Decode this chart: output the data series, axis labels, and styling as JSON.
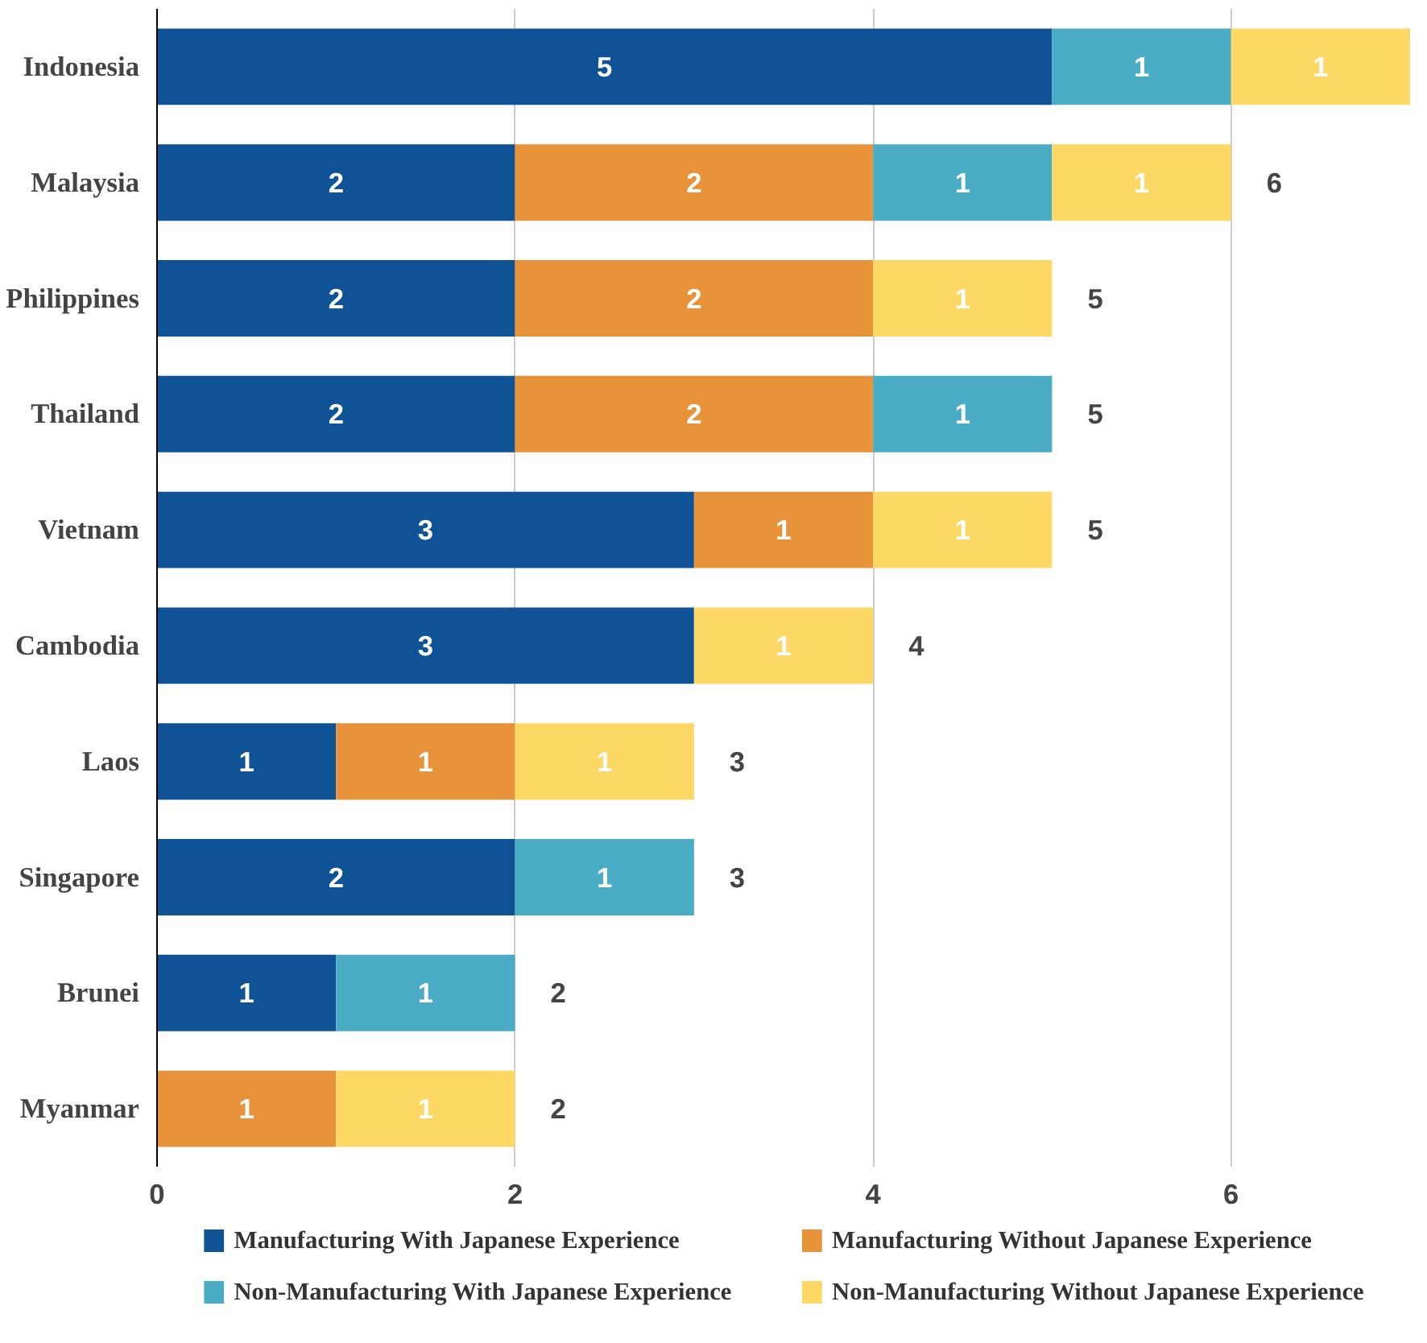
{
  "chart_data": {
    "type": "bar",
    "orientation": "horizontal",
    "stacked": true,
    "categories": [
      "Indonesia",
      "Malaysia",
      "Philippines",
      "Thailand",
      "Vietnam",
      "Cambodia",
      "Laos",
      "Singapore",
      "Brunei",
      "Myanmar"
    ],
    "series": [
      {
        "name": "Manufacturing With Japanese Experience",
        "color": "#0f5396",
        "values": [
          5,
          2,
          2,
          2,
          3,
          3,
          1,
          2,
          1,
          null
        ]
      },
      {
        "name": "Manufacturing Without Japanese Experience",
        "color": "#e8923a",
        "values": [
          null,
          2,
          2,
          2,
          1,
          null,
          1,
          null,
          null,
          1
        ]
      },
      {
        "name": "Non-Manufacturing With Japanese Experience",
        "color": "#4bacc6",
        "values": [
          1,
          1,
          null,
          1,
          null,
          null,
          null,
          1,
          1,
          null
        ]
      },
      {
        "name": "Non-Manufacturing Without Japanese Experience",
        "color": "#fdd865",
        "values": [
          1,
          1,
          1,
          null,
          1,
          1,
          1,
          null,
          null,
          1
        ]
      }
    ],
    "totals": [
      null,
      "6",
      "5",
      "5",
      "5",
      "4",
      "3",
      "3",
      "2",
      "2"
    ],
    "xlim": [
      0,
      7
    ],
    "xticks": [
      0,
      2,
      4,
      6
    ],
    "grid": "x",
    "legend": "bottom",
    "data_labels": true
  }
}
